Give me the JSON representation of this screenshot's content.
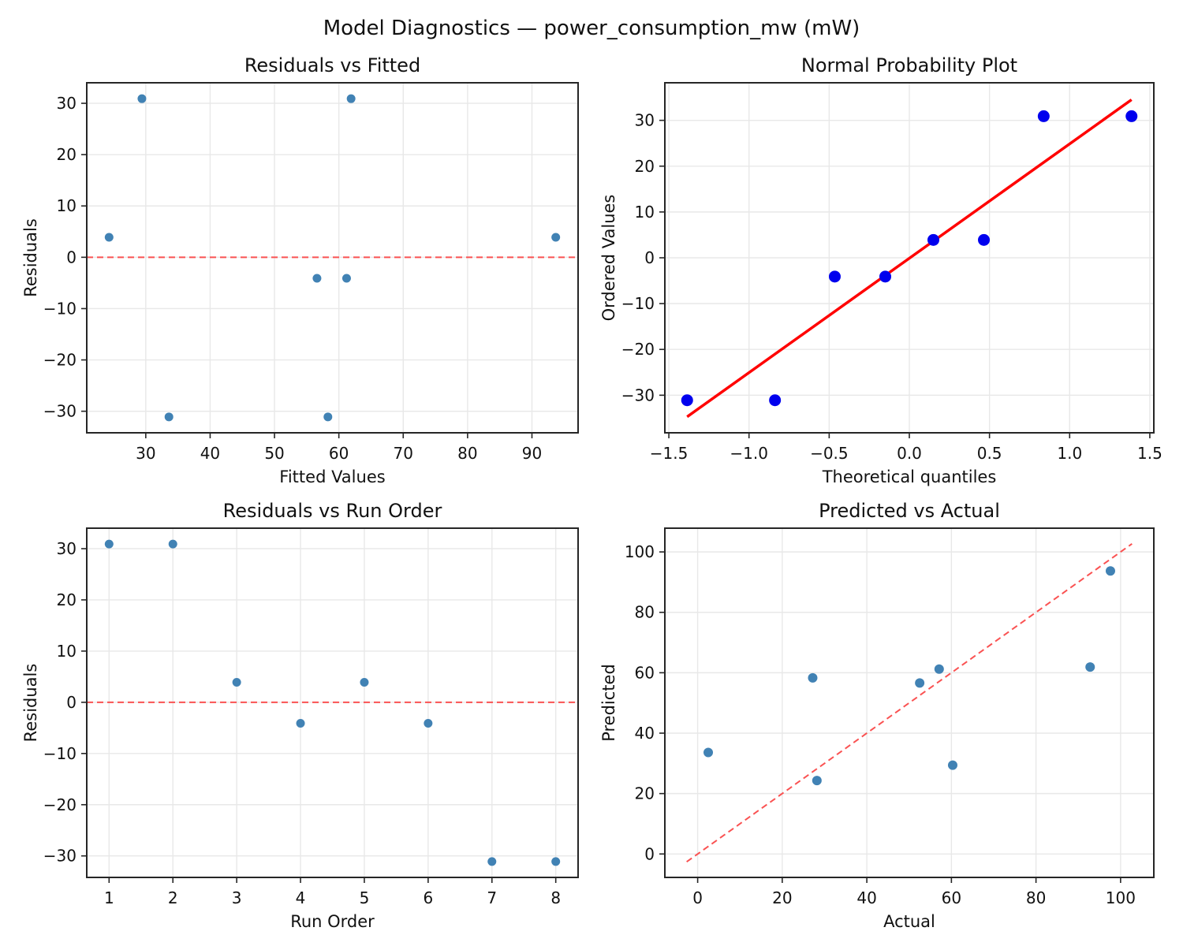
{
  "figure": {
    "suptitle": "Model Diagnostics — power_consumption_mw (mW)",
    "background": "#ffffff",
    "colors": {
      "scatter": "#4182b4",
      "prob_marker": "#0000ee",
      "fit_line": "#ff0000",
      "ref_line": "#fa5252",
      "grid": "#e8e8e8",
      "spine": "#262626",
      "tick": "#262626",
      "text": "#111111"
    }
  },
  "chart_data": [
    {
      "id": "residuals-vs-fitted",
      "type": "scatter",
      "title": "Residuals vs Fitted",
      "xlabel": "Fitted Values",
      "ylabel": "Residuals",
      "xlim": [
        20.83,
        97.17
      ],
      "ylim": [
        -34.2,
        34.0
      ],
      "xticks": [
        30,
        40,
        50,
        60,
        70,
        80,
        90
      ],
      "xtick_labels": [
        "30",
        "40",
        "50",
        "60",
        "70",
        "80",
        "90"
      ],
      "yticks": [
        -30,
        -20,
        -10,
        0,
        10,
        20,
        30
      ],
      "ytick_labels": [
        "−30",
        "−20",
        "−10",
        "0",
        "10",
        "20",
        "30"
      ],
      "x": [
        29.4,
        61.9,
        24.3,
        56.6,
        93.7,
        61.2,
        33.6,
        58.3
      ],
      "y": [
        30.9,
        30.9,
        3.9,
        -4.1,
        3.9,
        -4.1,
        -31.1,
        -31.1
      ],
      "marker": {
        "color_key": "scatter",
        "radius": 5.5
      },
      "lines": [
        {
          "x1": 20.83,
          "y1": 0,
          "x2": 97.17,
          "y2": 0,
          "dashed": true,
          "color_key": "ref_line",
          "width": 2
        }
      ],
      "grid": true
    },
    {
      "id": "normal-probability-plot",
      "type": "scatter",
      "title": "Normal Probability Plot",
      "xlabel": "Theoretical quantiles",
      "ylabel": "Ordered Values",
      "xlim": [
        -1.525,
        1.525
      ],
      "ylim": [
        -38.2,
        38.2
      ],
      "xticks": [
        -1.5,
        -1.0,
        -0.5,
        0.0,
        0.5,
        1.0,
        1.5
      ],
      "xtick_labels": [
        "−1.5",
        "−1.0",
        "−0.5",
        "0.0",
        "0.5",
        "1.0",
        "1.5"
      ],
      "yticks": [
        -30,
        -20,
        -10,
        0,
        10,
        20,
        30
      ],
      "ytick_labels": [
        "−30",
        "−20",
        "−10",
        "0",
        "10",
        "20",
        "30"
      ],
      "x": [
        -1.386,
        -0.838,
        -0.465,
        -0.15,
        0.15,
        0.465,
        0.838,
        1.386
      ],
      "y": [
        -31.1,
        -31.1,
        -4.1,
        -4.1,
        3.9,
        3.9,
        30.9,
        30.9
      ],
      "marker": {
        "color_key": "prob_marker",
        "radius": 7.5
      },
      "lines": [
        {
          "x1": -1.386,
          "y1": -34.7,
          "x2": 1.386,
          "y2": 34.5,
          "dashed": false,
          "color_key": "fit_line",
          "width": 3.5
        }
      ],
      "grid": true
    },
    {
      "id": "residuals-vs-run-order",
      "type": "scatter",
      "title": "Residuals vs Run Order",
      "xlabel": "Run Order",
      "ylabel": "Residuals",
      "xlim": [
        0.65,
        8.35
      ],
      "ylim": [
        -34.2,
        34.0
      ],
      "xticks": [
        1,
        2,
        3,
        4,
        5,
        6,
        7,
        8
      ],
      "xtick_labels": [
        "1",
        "2",
        "3",
        "4",
        "5",
        "6",
        "7",
        "8"
      ],
      "yticks": [
        -30,
        -20,
        -10,
        0,
        10,
        20,
        30
      ],
      "ytick_labels": [
        "−30",
        "−20",
        "−10",
        "0",
        "10",
        "20",
        "30"
      ],
      "x": [
        1,
        2,
        3,
        4,
        5,
        6,
        7,
        8
      ],
      "y": [
        30.9,
        30.9,
        3.9,
        -4.1,
        3.9,
        -4.1,
        -31.1,
        -31.1
      ],
      "marker": {
        "color_key": "scatter",
        "radius": 5.5
      },
      "lines": [
        {
          "x1": 0.65,
          "y1": 0,
          "x2": 8.35,
          "y2": 0,
          "dashed": true,
          "color_key": "ref_line",
          "width": 2
        }
      ],
      "grid": true
    },
    {
      "id": "predicted-vs-actual",
      "type": "scatter",
      "title": "Predicted vs Actual",
      "xlabel": "Actual",
      "ylabel": "Predicted",
      "xlim": [
        -7.76,
        107.86
      ],
      "ylim": [
        -7.76,
        107.86
      ],
      "xticks": [
        0,
        20,
        40,
        60,
        80,
        100
      ],
      "xtick_labels": [
        "0",
        "20",
        "40",
        "60",
        "80",
        "100"
      ],
      "yticks": [
        0,
        20,
        40,
        60,
        80,
        100
      ],
      "ytick_labels": [
        "0",
        "20",
        "40",
        "60",
        "80",
        "100"
      ],
      "x": [
        60.3,
        92.8,
        28.2,
        52.5,
        97.6,
        57.1,
        2.5,
        27.2
      ],
      "y": [
        29.4,
        61.9,
        24.3,
        56.6,
        93.7,
        61.2,
        33.6,
        58.3
      ],
      "marker": {
        "color_key": "scatter",
        "radius": 6
      },
      "lines": [
        {
          "x1": -2.6,
          "y1": -2.6,
          "x2": 102.7,
          "y2": 102.7,
          "dashed": true,
          "color_key": "ref_line",
          "width": 2
        }
      ],
      "grid": true
    }
  ]
}
